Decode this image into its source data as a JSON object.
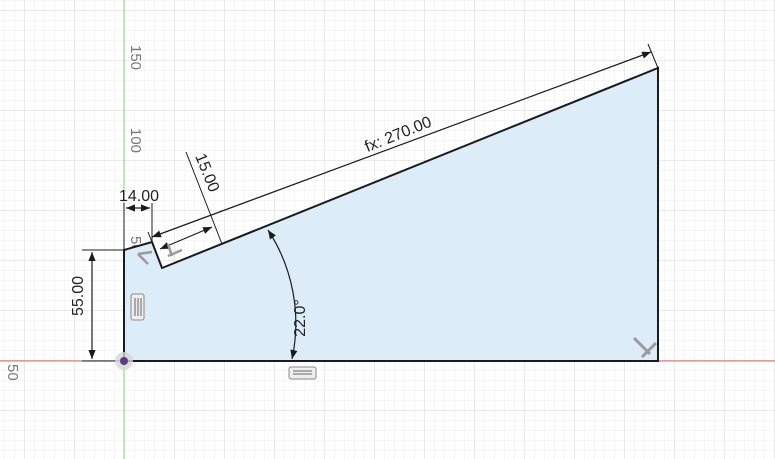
{
  "grid_labels": {
    "y150": "150",
    "y100": "100",
    "y50": "50",
    "x50": "50"
  },
  "dimensions": {
    "height": "55.00",
    "top_width": "14.00",
    "offset": "15.00",
    "length": "fx: 270.00",
    "angle": "22.0°"
  },
  "colors": {
    "background": "#ffffff",
    "grid_minor": "#ececec",
    "grid_major": "#d2d2d2",
    "x_axis": "#e86868",
    "y_axis": "#7fd07f",
    "profile_fill": "#dcecf8",
    "outline": "#1b1b1b",
    "dimension": "#1b1b1b"
  },
  "icons": [
    "origin-icon",
    "vertical-constraint-icon",
    "horizontal-constraint-icon",
    "perpendicular-constraint-icon",
    "coincident-constraint-icon"
  ]
}
